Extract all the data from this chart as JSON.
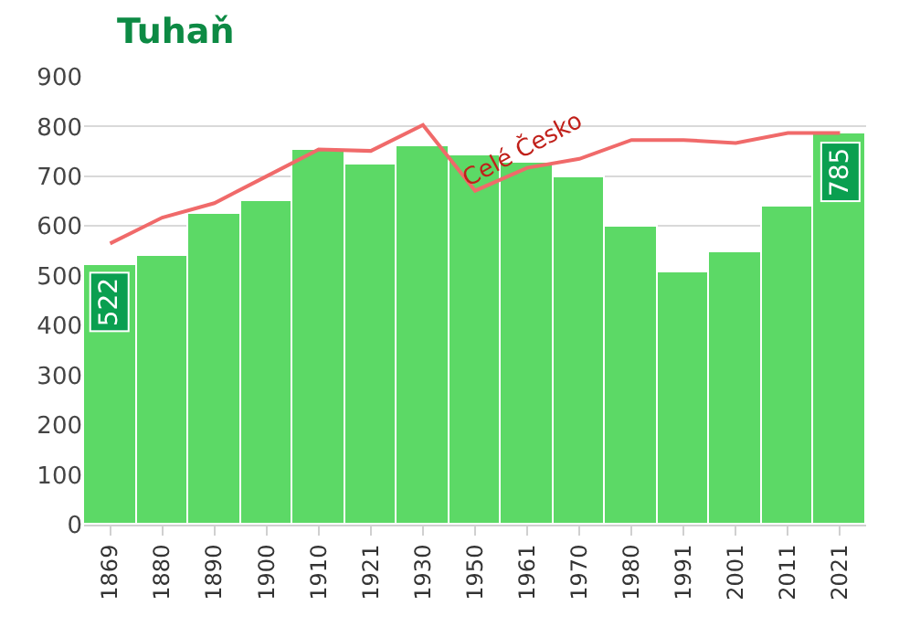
{
  "chart_data": {
    "type": "bar",
    "title": "Tuhaň",
    "categories": [
      "1869",
      "1880",
      "1890",
      "1900",
      "1910",
      "1921",
      "1930",
      "1950",
      "1961",
      "1970",
      "1980",
      "1991",
      "2001",
      "2011",
      "2021"
    ],
    "series": [
      {
        "color": "#5cd966",
        "values": [
          522,
          541,
          626,
          649,
          753,
          722,
          760,
          741,
          726,
          699,
          599,
          507,
          546,
          638,
          785
        ],
        "value_labels": [
          "522",
          null,
          null,
          null,
          null,
          null,
          null,
          null,
          null,
          null,
          null,
          null,
          null,
          null,
          "785"
        ]
      },
      {
        "type": "line",
        "name": "Celé Česko",
        "color": "#f06a6a",
        "values": [
          565,
          617,
          646,
          700,
          754,
          751,
          803,
          671,
          717,
          735,
          773,
          773,
          767,
          787,
          787
        ]
      }
    ],
    "ylim": [
      0,
      900
    ],
    "yticks": [
      0,
      100,
      200,
      300,
      400,
      500,
      600,
      700,
      800,
      900
    ],
    "grid": "y",
    "legend": false,
    "marker": "none"
  }
}
